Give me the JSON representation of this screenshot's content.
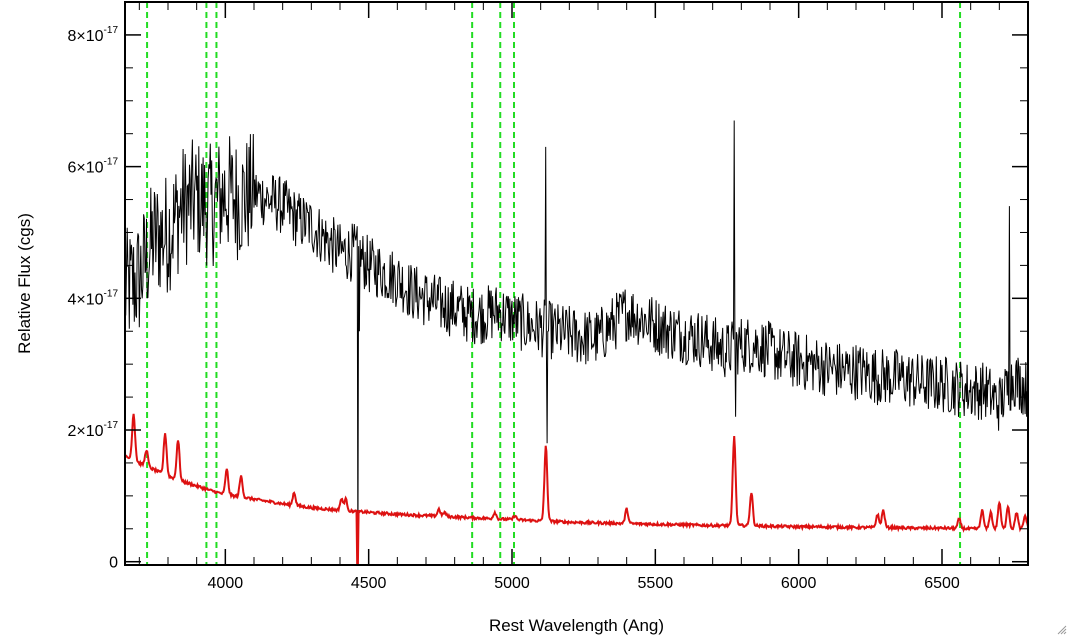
{
  "chart_data": {
    "type": "line",
    "xlabel": "Rest Wavelength (Ang)",
    "ylabel": "Relative Flux (cgs)",
    "title": "",
    "xlim": [
      3650,
      6800
    ],
    "ylim": [
      -5e-19,
      8.5e-17
    ],
    "x_ticks": [
      4000,
      4500,
      5000,
      5500,
      6000,
      6500
    ],
    "x_tick_labels": [
      "4000",
      "4500",
      "5000",
      "5500",
      "6000",
      "6500"
    ],
    "y_ticks": [
      0,
      2e-17,
      4e-17,
      6e-17,
      8e-17
    ],
    "y_tick_labels": [
      {
        "mantissa": "0",
        "exponent": ""
      },
      {
        "mantissa": "2×10",
        "exponent": "-17"
      },
      {
        "mantissa": "4×10",
        "exponent": "-17"
      },
      {
        "mantissa": "6×10",
        "exponent": "-17"
      },
      {
        "mantissa": "8×10",
        "exponent": "-17"
      }
    ],
    "grid": false,
    "vertical_lines": {
      "color": "#22dd22",
      "style": "dashed",
      "x": [
        3727,
        3934,
        3969,
        4861,
        4959,
        5007,
        6563
      ]
    },
    "series": [
      {
        "color": "#000000",
        "style": "noisy-spectrum",
        "x": [
          3650,
          3700,
          3750,
          3800,
          3850,
          3900,
          3950,
          4000,
          4050,
          4100,
          4150,
          4200,
          4250,
          4300,
          4350,
          4400,
          4450,
          4500,
          4550,
          4600,
          4650,
          4700,
          4750,
          4800,
          4850,
          4900,
          4950,
          5000,
          5050,
          5100,
          5150,
          5200,
          5250,
          5300,
          5350,
          5400,
          5450,
          5500,
          5550,
          5600,
          5650,
          5700,
          5750,
          5800,
          5850,
          5900,
          5950,
          6000,
          6050,
          6100,
          6150,
          6200,
          6250,
          6300,
          6350,
          6400,
          6450,
          6500,
          6550,
          6600,
          6650,
          6700,
          6750,
          6800
        ],
        "y": [
          4.1e-17,
          4.3e-17,
          4.9e-17,
          5e-17,
          5.4e-17,
          5.5e-17,
          5.4e-17,
          5.6e-17,
          5.5e-17,
          5.6e-17,
          5.5e-17,
          5.4e-17,
          5.2e-17,
          5.1e-17,
          4.9e-17,
          4.7e-17,
          4.7e-17,
          4.5e-17,
          4.4e-17,
          4.3e-17,
          4.1e-17,
          4e-17,
          3.9e-17,
          3.85e-17,
          3.75e-17,
          3.75e-17,
          3.8e-17,
          3.7e-17,
          3.6e-17,
          3.55e-17,
          3.5e-17,
          3.45e-17,
          3.4e-17,
          3.4e-17,
          3.6e-17,
          3.8e-17,
          3.7e-17,
          3.6e-17,
          3.5e-17,
          3.45e-17,
          3.4e-17,
          3.3e-17,
          3.2e-17,
          3.3e-17,
          3.3e-17,
          3.2e-17,
          3.1e-17,
          3.05e-17,
          3e-17,
          2.95e-17,
          2.9e-17,
          2.9e-17,
          2.85e-17,
          2.8e-17,
          2.8e-17,
          2.75e-17,
          2.7e-17,
          2.7e-17,
          2.65e-17,
          2.6e-17,
          2.6e-17,
          2.4e-17,
          2.8e-17,
          2.6e-17
        ],
        "features": [
          {
            "x": 4462,
            "y": -1e-18
          },
          {
            "x": 4467,
            "y": 3.5e-17
          },
          {
            "x": 5118,
            "y": 6.3e-17
          },
          {
            "x": 5123,
            "y": 1.8e-17
          },
          {
            "x": 5775,
            "y": 6.7e-17
          },
          {
            "x": 5779,
            "y": 2.2e-17
          },
          {
            "x": 6735,
            "y": 5.4e-17
          }
        ]
      },
      {
        "color": "#dd1111",
        "style": "continuum-with-lines",
        "x": [
          3650,
          3700,
          3750,
          3800,
          3850,
          3900,
          3950,
          4000,
          4100,
          4200,
          4300,
          4400,
          4500,
          4600,
          4700,
          4800,
          4900,
          5000,
          5100,
          5200,
          5300,
          5400,
          5500,
          5600,
          5700,
          5800,
          5900,
          6000,
          6100,
          6200,
          6300,
          6400,
          6500,
          6600,
          6700,
          6800
        ],
        "y": [
          1.6e-17,
          1.5e-17,
          1.4e-17,
          1.3e-17,
          1.22e-17,
          1.15e-17,
          1.08e-17,
          1.02e-17,
          9.5e-18,
          8.8e-18,
          8.2e-18,
          7.8e-18,
          7.5e-18,
          7.2e-18,
          7e-18,
          6.8e-18,
          6.6e-18,
          6.4e-18,
          6.2e-18,
          6e-18,
          5.9e-18,
          5.8e-18,
          5.7e-18,
          5.6e-18,
          5.5e-18,
          5.5e-18,
          5.4e-18,
          5.3e-18,
          5.3e-18,
          5.2e-18,
          5.2e-18,
          5.1e-18,
          5.1e-18,
          5e-18,
          5e-18,
          5e-18
        ],
        "lines": [
          {
            "x": 3680,
            "peak": 2.25e-17
          },
          {
            "x": 3725,
            "peak": 1.7e-17
          },
          {
            "x": 3790,
            "peak": 1.95e-17
          },
          {
            "x": 3835,
            "peak": 1.85e-17
          },
          {
            "x": 4005,
            "peak": 1.4e-17
          },
          {
            "x": 4055,
            "peak": 1.3e-17
          },
          {
            "x": 4240,
            "peak": 1.05e-17
          },
          {
            "x": 4405,
            "peak": 9.5e-18
          },
          {
            "x": 4420,
            "peak": 9.5e-18
          },
          {
            "x": 4745,
            "peak": 8e-18
          },
          {
            "x": 4765,
            "peak": 7.5e-18
          },
          {
            "x": 4940,
            "peak": 7.5e-18
          },
          {
            "x": 5010,
            "peak": 7e-18
          },
          {
            "x": 5118,
            "peak": 1.75e-17
          },
          {
            "x": 5400,
            "peak": 8e-18
          },
          {
            "x": 5775,
            "peak": 1.9e-17
          },
          {
            "x": 5835,
            "peak": 1.05e-17
          },
          {
            "x": 6275,
            "peak": 7.2e-18
          },
          {
            "x": 6295,
            "peak": 7.8e-18
          },
          {
            "x": 6560,
            "peak": 6.5e-18
          },
          {
            "x": 6640,
            "peak": 7.8e-18
          },
          {
            "x": 6670,
            "peak": 7.5e-18
          },
          {
            "x": 6700,
            "peak": 9e-18
          },
          {
            "x": 6730,
            "peak": 8.5e-18
          },
          {
            "x": 6760,
            "peak": 7.5e-18
          },
          {
            "x": 6790,
            "peak": 7e-18
          }
        ],
        "dips": [
          {
            "x": 4462,
            "y": -1e-18
          }
        ]
      }
    ]
  }
}
